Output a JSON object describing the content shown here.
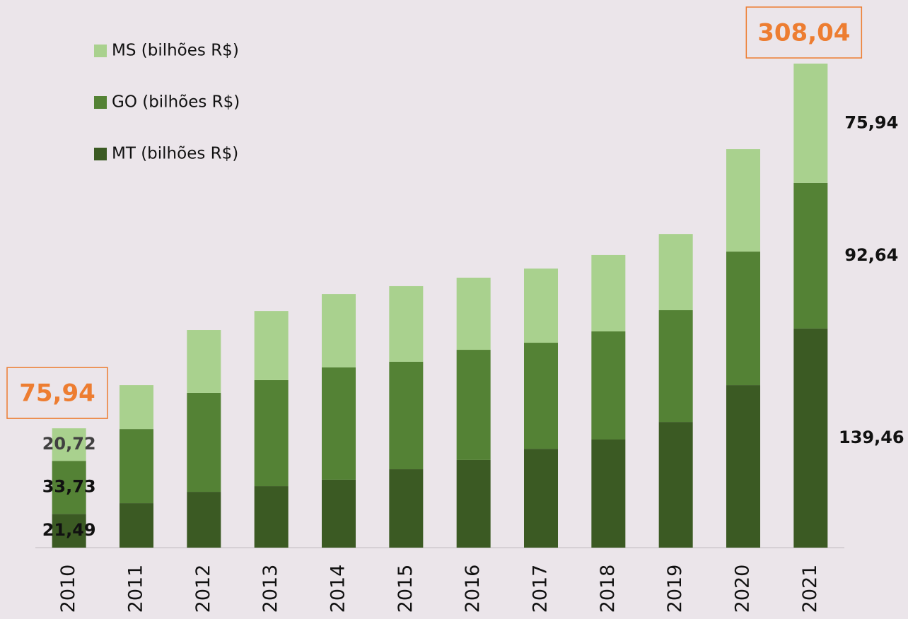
{
  "chart_data": {
    "type": "stacked-bar",
    "categories": [
      "2010",
      "2011",
      "2012",
      "2013",
      "2014",
      "2015",
      "2016",
      "2017",
      "2018",
      "2019",
      "2020",
      "2021"
    ],
    "series": [
      {
        "name": "MT (bilhões R$)",
        "color": "#3b5a23",
        "values": [
          21.49,
          28.3,
          35.5,
          39.1,
          43.2,
          49.9,
          55.8,
          62.9,
          68.8,
          80.0,
          103.4,
          139.46
        ],
        "value_labels": [
          "21,49",
          null,
          null,
          null,
          null,
          null,
          null,
          null,
          null,
          null,
          null,
          "139,46"
        ]
      },
      {
        "name": "GO (bilhões R$)",
        "color": "#548235",
        "values": [
          33.73,
          47.2,
          63.0,
          67.5,
          71.5,
          68.4,
          70.1,
          67.5,
          68.8,
          71.1,
          85.0,
          92.64
        ],
        "value_labels": [
          "33,73",
          null,
          null,
          null,
          null,
          null,
          null,
          null,
          null,
          null,
          null,
          "92,64"
        ]
      },
      {
        "name": "MS (bilhões R$)",
        "color": "#a9d18e",
        "values": [
          20.72,
          27.9,
          40.0,
          44.0,
          46.7,
          48.1,
          45.9,
          47.2,
          48.6,
          48.5,
          65.2,
          75.94
        ],
        "value_labels": [
          "20,72",
          null,
          null,
          null,
          null,
          null,
          null,
          null,
          null,
          null,
          null,
          "75,94"
        ]
      }
    ],
    "totals": [
      75.94,
      null,
      null,
      null,
      null,
      null,
      null,
      null,
      null,
      null,
      null,
      308.04
    ],
    "total_labels": [
      "75,94",
      null,
      null,
      null,
      null,
      null,
      null,
      null,
      null,
      null,
      null,
      "308,04"
    ],
    "ylim": [
      0,
      308.04
    ],
    "legend": "top-left"
  }
}
